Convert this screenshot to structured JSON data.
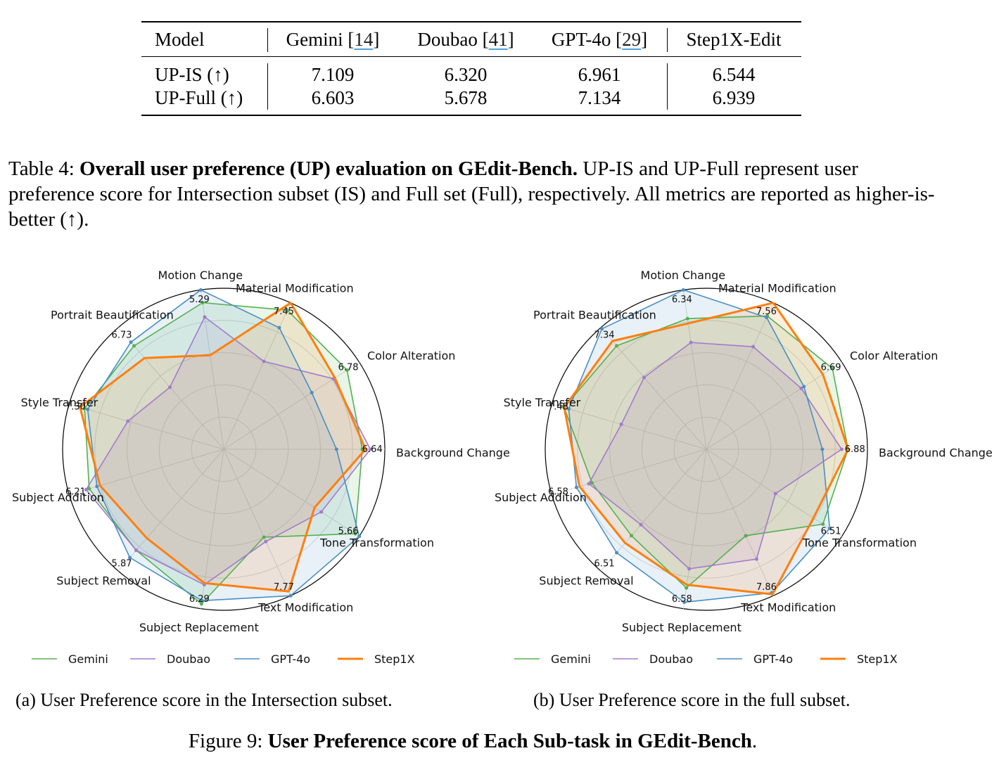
{
  "table": {
    "header": {
      "model": "Model",
      "gemini": "Gemini",
      "gemini_cite": "14",
      "doubao": "Doubao",
      "doubao_cite": "41",
      "gpt": "GPT-4o",
      "gpt_cite": "29",
      "step": "Step1X-Edit"
    },
    "rows": [
      {
        "name": "UP-IS (↑)",
        "gemini": "7.109",
        "doubao": "6.320",
        "gpt": "6.961",
        "step": "6.544"
      },
      {
        "name": "UP-Full (↑)",
        "gemini": "6.603",
        "doubao": "5.678",
        "gpt": "7.134",
        "step": "6.939"
      }
    ]
  },
  "table_caption": {
    "label": "Table 4:",
    "bold": "Overall user preference (UP) evaluation on GEdit-Bench.",
    "rest": "UP-IS and UP-Full represent user preference score for Intersection subset (IS) and Full set (Full), respectively. All metrics are reported as higher-is-better (↑)."
  },
  "subcaption_a": "(a) User Preference score in the Intersection subset.",
  "subcaption_b": "(b) User Preference score in the full subset.",
  "figure_caption": {
    "label": "Figure 9:",
    "bold": "User Preference score of Each Sub-task in GEdit-Bench",
    "end": "."
  },
  "chart_data": [
    {
      "type": "radar",
      "title": "(a) User Preference score in the Intersection subset.",
      "categories": [
        "Background Change",
        "Color Alteration",
        "Material Modification",
        "Motion Change",
        "Portrait Beautification",
        "Style Transfer",
        "Subject Addition",
        "Subject Removal",
        "Subject Replacement",
        "Text Modification",
        "Tone Transformation"
      ],
      "max_values": [
        "6.64",
        "6.78",
        "7.45",
        "5.29",
        "6.73",
        "7.30",
        "6.21",
        "5.87",
        "6.29",
        "7.77",
        "5.66"
      ],
      "legend": [
        "Gemini",
        "Doubao",
        "GPT-4o",
        "Step1X"
      ],
      "series": [
        {
          "name": "Gemini",
          "color": "#55b04f",
          "values": [
            0.86,
            0.91,
            0.95,
            0.92,
            0.85,
            0.9,
            0.87,
            0.83,
            0.97,
            0.6,
            0.97
          ]
        },
        {
          "name": "Doubao",
          "color": "#a07ccc",
          "values": [
            0.91,
            0.81,
            0.6,
            0.83,
            0.51,
            0.62,
            0.89,
            0.83,
            0.85,
            0.63,
            0.72
          ]
        },
        {
          "name": "GPT-4o",
          "color": "#4a8fc4",
          "values": [
            0.7,
            0.65,
            0.83,
            1.0,
            0.88,
            0.88,
            0.82,
            0.89,
            0.95,
            1.0,
            1.0
          ]
        },
        {
          "name": "Step1X",
          "color": "#ff7f0e",
          "values": [
            0.88,
            0.82,
            1.0,
            0.59,
            0.75,
            0.93,
            0.8,
            0.73,
            0.84,
            0.97,
            0.67
          ]
        }
      ]
    },
    {
      "type": "radar",
      "title": "(b) User Preference score in the full subset.",
      "categories": [
        "Background Change",
        "Color Alteration",
        "Material Modification",
        "Motion Change",
        "Portrait Beautification",
        "Style Transfer",
        "Subject Addition",
        "Subject Removal",
        "Subject Replacement",
        "Text Modification",
        "Tone Transformation"
      ],
      "max_values": [
        "6.88",
        "6.69",
        "7.56",
        "6.34",
        "7.34",
        "7.48",
        "6.58",
        "6.51",
        "6.58",
        "7.86",
        "6.51"
      ],
      "legend": [
        "Gemini",
        "Doubao",
        "GPT-4o",
        "Step1X"
      ],
      "series": [
        {
          "name": "Gemini",
          "color": "#55b04f",
          "values": [
            0.88,
            0.93,
            0.91,
            0.82,
            0.85,
            0.92,
            0.74,
            0.71,
            0.87,
            0.59,
            0.86
          ]
        },
        {
          "name": "Doubao",
          "color": "#a07ccc",
          "values": [
            0.84,
            0.7,
            0.7,
            0.67,
            0.59,
            0.55,
            0.76,
            0.62,
            0.75,
            0.75,
            0.51
          ]
        },
        {
          "name": "GPT-4o",
          "color": "#4a8fc4",
          "values": [
            0.72,
            0.72,
            0.9,
            1.0,
            0.99,
            0.89,
            0.84,
            0.85,
            0.96,
            0.98,
            0.91
          ]
        },
        {
          "name": "Step1X",
          "color": "#ff7f0e",
          "values": [
            0.88,
            0.86,
            1.0,
            0.79,
            0.89,
            0.92,
            0.82,
            0.77,
            0.85,
            0.99,
            0.79
          ]
        }
      ]
    }
  ]
}
